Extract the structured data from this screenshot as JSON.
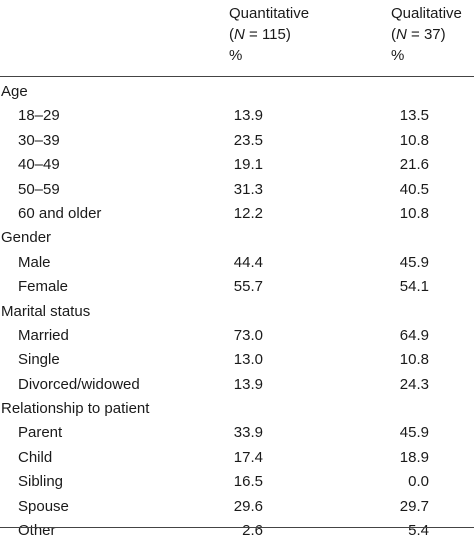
{
  "header": {
    "col1": {
      "title": "Quantitative",
      "n_label": "N",
      "n_value": " = 115)",
      "open": "(",
      "unit": "%"
    },
    "col2": {
      "title": "Qualitative",
      "n_label": "N",
      "n_value": " = 37)",
      "open": "(",
      "unit": "%"
    }
  },
  "rows": [
    {
      "type": "category",
      "label": "Age"
    },
    {
      "type": "item",
      "label": "18–29",
      "quant": "13.9",
      "qual": "13.5"
    },
    {
      "type": "item",
      "label": "30–39",
      "quant": "23.5",
      "qual": "10.8"
    },
    {
      "type": "item",
      "label": "40–49",
      "quant": "19.1",
      "qual": "21.6"
    },
    {
      "type": "item",
      "label": "50–59",
      "quant": "31.3",
      "qual": "40.5"
    },
    {
      "type": "item",
      "label": "60 and older",
      "quant": "12.2",
      "qual": "10.8"
    },
    {
      "type": "category",
      "label": "Gender"
    },
    {
      "type": "item",
      "label": "Male",
      "quant": "44.4",
      "qual": "45.9"
    },
    {
      "type": "item",
      "label": "Female",
      "quant": "55.7",
      "qual": "54.1"
    },
    {
      "type": "category",
      "label": "Marital status"
    },
    {
      "type": "item",
      "label": "Married",
      "quant": "73.0",
      "qual": "64.9"
    },
    {
      "type": "item",
      "label": "Single",
      "quant": "13.0",
      "qual": "10.8"
    },
    {
      "type": "item",
      "label": "Divorced/widowed",
      "quant": "13.9",
      "qual": "24.3"
    },
    {
      "type": "category",
      "label": "Relationship to patient"
    },
    {
      "type": "item",
      "label": "Parent",
      "quant": "33.9",
      "qual": "45.9"
    },
    {
      "type": "item",
      "label": "Child",
      "quant": "17.4",
      "qual": "18.9"
    },
    {
      "type": "item",
      "label": "Sibling",
      "quant": "16.5",
      "qual": "0.0"
    },
    {
      "type": "item",
      "label": "Spouse",
      "quant": "29.6",
      "qual": "29.7"
    },
    {
      "type": "item",
      "label": "Other",
      "quant": "2.6",
      "qual": "5.4"
    }
  ]
}
